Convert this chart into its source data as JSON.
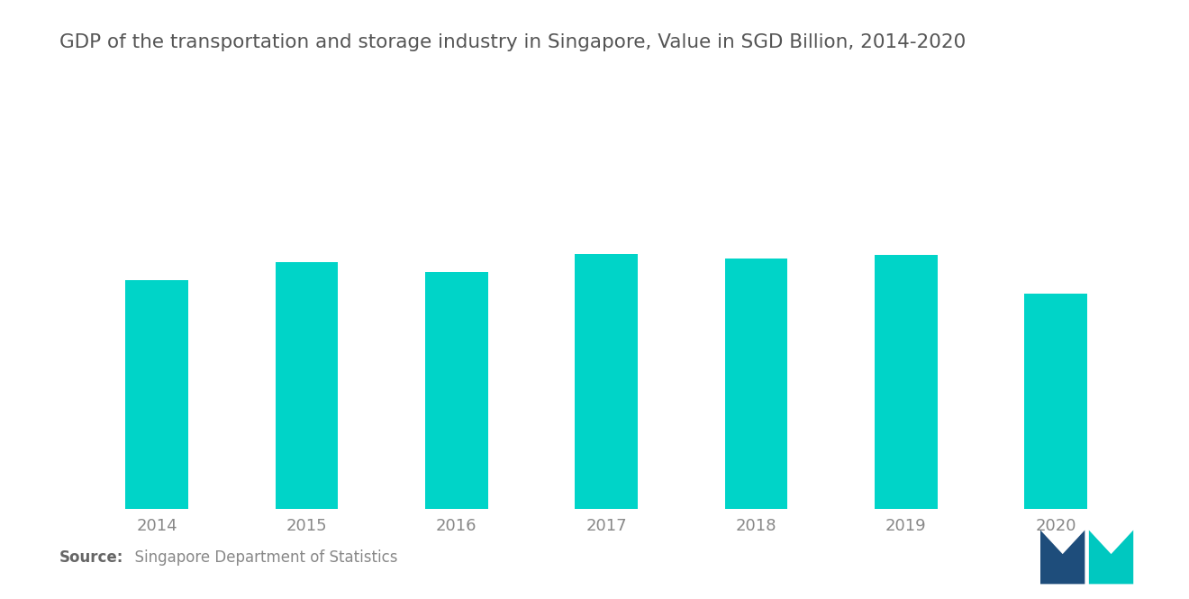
{
  "title": "GDP of the transportation and storage industry in Singapore, Value in SGD Billion, 2014-2020",
  "categories": [
    "2014",
    "2015",
    "2016",
    "2017",
    "2018",
    "2019",
    "2020"
  ],
  "values": [
    13.8,
    14.9,
    14.3,
    15.4,
    15.1,
    15.3,
    13.0
  ],
  "bar_color": "#00D4C8",
  "background_color": "#FFFFFF",
  "title_fontsize": 15.5,
  "tick_fontsize": 13,
  "source_bold": "Source:",
  "source_rest": "  Singapore Department of Statistics",
  "ylim": [
    0,
    26
  ],
  "bar_width": 0.42
}
